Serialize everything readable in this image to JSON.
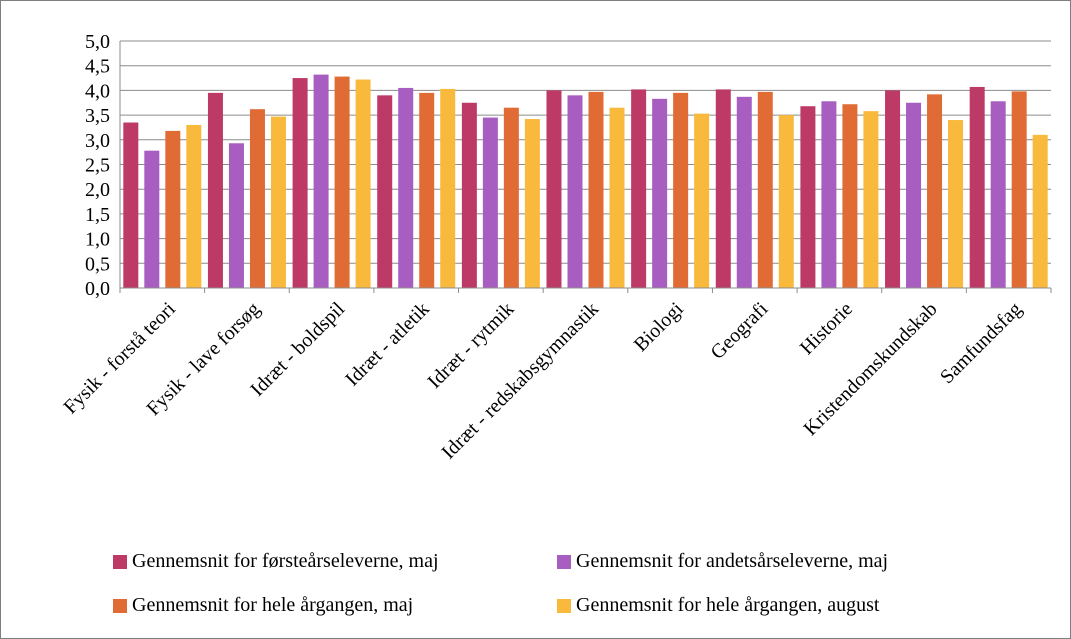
{
  "chart_data": {
    "type": "bar",
    "categories": [
      "Fysik - forstå teori",
      "Fysik - lave forsøg",
      "Idræt - boldspil",
      "Idræt - atletik",
      "Idræt - rytmik",
      "Idræt - redskabsgymnastik",
      "Biologi",
      "Geografi",
      "Historie",
      "Kristendomskundskab",
      "Samfundsfag"
    ],
    "series": [
      {
        "name": "Gennemsnit for førsteårseleverne, maj",
        "color": "#be3a66",
        "values": [
          3.35,
          3.95,
          4.25,
          3.9,
          3.75,
          4.0,
          4.02,
          4.02,
          3.68,
          4.0,
          4.07
        ]
      },
      {
        "name": "Gennemsnit for andetsårseleverne, maj",
        "color": "#a85ec0",
        "values": [
          2.78,
          2.93,
          4.32,
          4.05,
          3.45,
          3.9,
          3.83,
          3.87,
          3.78,
          3.75,
          3.78
        ]
      },
      {
        "name": "Gennemsnit for hele årgangen, maj",
        "color": "#e06b34",
        "values": [
          3.18,
          3.62,
          4.28,
          3.95,
          3.65,
          3.97,
          3.95,
          3.97,
          3.72,
          3.92,
          3.98
        ]
      },
      {
        "name": "Gennemsnit for hele årgangen, august",
        "color": "#f8b93d",
        "values": [
          3.3,
          3.47,
          4.22,
          4.03,
          3.42,
          3.65,
          3.53,
          3.5,
          3.58,
          3.4,
          3.1
        ]
      }
    ],
    "y_ticks": [
      "0,0",
      "0,5",
      "1,0",
      "1,5",
      "2,0",
      "2,5",
      "3,0",
      "3,5",
      "4,0",
      "4,5",
      "5,0"
    ],
    "ylim": [
      0,
      5
    ],
    "grid": true,
    "legend_position": "bottom"
  }
}
